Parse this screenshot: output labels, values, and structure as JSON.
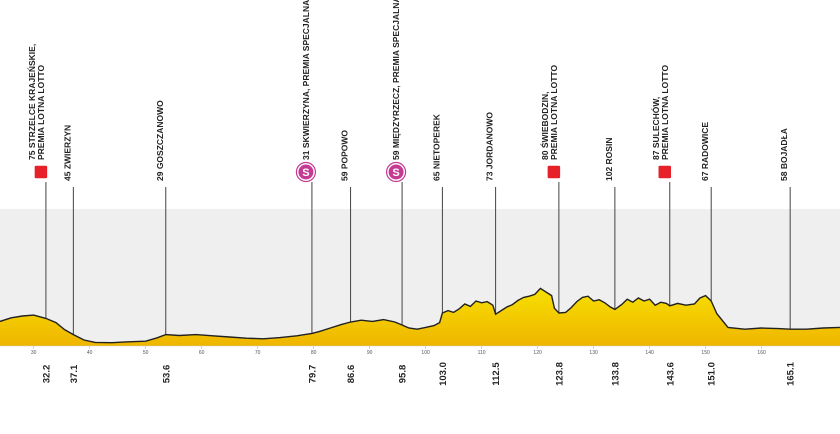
{
  "chart_data": {
    "type": "area",
    "title": "",
    "xlabel": "",
    "ylabel": "",
    "xlim": [
      24,
      174
    ],
    "ylim": [
      0,
      400
    ],
    "colors": {
      "fill_top": "#f7e000",
      "fill_bottom": "#efb500",
      "outline": "#222222",
      "panel": "#efefef",
      "sprint": "#e62129",
      "special": "#c43a92"
    },
    "x_ticks": [
      "30",
      "40",
      "50",
      "60",
      "70",
      "80",
      "90",
      "100",
      "110",
      "120",
      "130",
      "140",
      "150",
      "160"
    ],
    "profile": {
      "x": [
        24.0,
        26.0,
        28.0,
        30.0,
        32.2,
        34.0,
        35.5,
        37.1,
        39.0,
        41.0,
        44.0,
        47.0,
        50.0,
        52.0,
        53.6,
        56.0,
        59.0,
        62.0,
        65.0,
        68.0,
        71.0,
        74.0,
        77.0,
        79.7,
        81.0,
        83.0,
        85.0,
        86.6,
        88.5,
        90.5,
        92.5,
        94.5,
        95.8,
        97.0,
        98.5,
        100.0,
        101.5,
        102.5,
        103.0,
        104.0,
        105.0,
        106.0,
        107.0,
        108.0,
        109.0,
        110.0,
        111.0,
        112.0,
        112.5,
        113.5,
        114.5,
        115.5,
        116.5,
        117.5,
        118.5,
        119.5,
        120.5,
        121.5,
        122.5,
        123.0,
        123.8,
        125.0,
        126.0,
        127.0,
        128.0,
        129.0,
        130.0,
        131.0,
        132.0,
        133.0,
        133.8,
        135.0,
        136.0,
        137.0,
        138.0,
        139.0,
        140.0,
        141.0,
        142.0,
        143.0,
        143.6,
        145.0,
        146.5,
        148.0,
        149.0,
        150.0,
        151.0,
        152.0,
        154.0,
        157.0,
        160.0,
        163.0,
        165.1,
        168.0,
        171.0,
        174.0
      ],
      "elevation": [
        82,
        94,
        100,
        103,
        92,
        78,
        55,
        38,
        20,
        12,
        11,
        14,
        16,
        27,
        38,
        35,
        38,
        34,
        30,
        26,
        24,
        28,
        34,
        42,
        48,
        60,
        72,
        80,
        86,
        82,
        88,
        80,
        70,
        60,
        56,
        62,
        68,
        78,
        110,
        118,
        112,
        124,
        140,
        132,
        150,
        144,
        148,
        136,
        106,
        118,
        130,
        138,
        152,
        162,
        166,
        172,
        192,
        180,
        168,
        126,
        110,
        112,
        128,
        148,
        162,
        166,
        150,
        154,
        144,
        130,
        122,
        138,
        156,
        146,
        160,
        150,
        156,
        136,
        146,
        142,
        134,
        142,
        136,
        140,
        160,
        168,
        150,
        108,
        62,
        56,
        60,
        58,
        56,
        56,
        60,
        62
      ]
    },
    "markers": [
      {
        "km": "32.2",
        "x": 32.2,
        "label": "75 STRZELCE KRAJEŃSKIE,\nPREMIA LOTNA LOTTO",
        "badge": "sprint"
      },
      {
        "km": "37.1",
        "x": 37.1,
        "label": "45 ZWIERZYN",
        "badge": ""
      },
      {
        "km": "53.6",
        "x": 53.6,
        "label": "29 GOSZCZANOWO",
        "badge": ""
      },
      {
        "km": "79.7",
        "x": 79.7,
        "label": "31 SKWIERZYNA, PREMIA SPECJALNA",
        "badge": "special"
      },
      {
        "km": "86.6",
        "x": 86.6,
        "label": "59 POPOWO",
        "badge": ""
      },
      {
        "km": "95.8",
        "x": 95.8,
        "label": "59 MIĘDZYRZECZ, PREMIA SPECJALNA",
        "badge": "special"
      },
      {
        "km": "103.0",
        "x": 103.0,
        "label": "65 NIETOPEREK",
        "badge": ""
      },
      {
        "km": "112.5",
        "x": 112.5,
        "label": "73 JORDANOWO",
        "badge": ""
      },
      {
        "km": "123.8",
        "x": 123.8,
        "label": "80 ŚWIEBODZIN,\nPREMIA LOTNA LOTTO",
        "badge": "sprint"
      },
      {
        "km": "133.8",
        "x": 133.8,
        "label": "102 ROSIN",
        "badge": ""
      },
      {
        "km": "143.6",
        "x": 143.6,
        "label": "87 SULECHÓW,\nPREMIA LOTNA LOTTO",
        "badge": "sprint"
      },
      {
        "km": "151.0",
        "x": 151.0,
        "label": "67 RADOWICE",
        "badge": ""
      },
      {
        "km": "165.1",
        "x": 165.1,
        "label": "58 BOJADŁA",
        "badge": ""
      }
    ],
    "special_letter": "S"
  }
}
